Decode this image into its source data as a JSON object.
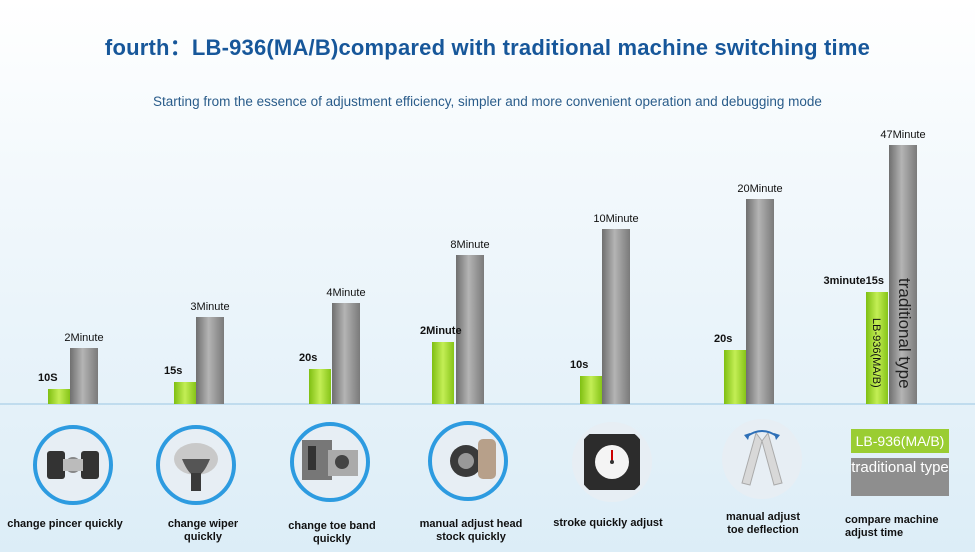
{
  "title": "fourth：LB-936(MA/B)compared with traditional  machine switching time",
  "subtitle": "Starting from the essence of adjustment efficiency, simpler and more convenient operation and debugging mode",
  "legend": {
    "lb936": "LB-936(MA/B)",
    "traditional": "traditional type"
  },
  "colors": {
    "lb936": "#9acd32",
    "traditional": "#8e8e8e",
    "title": "#17579a"
  },
  "chart_data": {
    "type": "bar",
    "categories": [
      "change pincer quickly",
      "change wiper quickly",
      "change toe band quickly",
      "manual adjust head stock quickly",
      "stroke quickly adjust",
      "manual adjust toe deflection",
      "compare machine adjust time"
    ],
    "series": [
      {
        "name": "LB-936(MA/B)",
        "labels": [
          "10S",
          "15s",
          "20s",
          "2Minute",
          "10s",
          "20s",
          "3minute15s"
        ],
        "values_seconds": [
          10,
          15,
          20,
          120,
          10,
          20,
          195
        ]
      },
      {
        "name": "traditional type",
        "labels": [
          "2Minute",
          "3Minute",
          "4Minute",
          "8Minute",
          "10Minute",
          "20Minute",
          "47Minute"
        ],
        "values_seconds": [
          120,
          180,
          240,
          480,
          600,
          1200,
          2820
        ]
      }
    ],
    "icons": [
      "pincer-icon",
      "wiper-icon",
      "toe-band-icon",
      "head-stock-icon",
      "timer-dial-icon",
      "toe-deflection-icon"
    ],
    "vertical_labels": {
      "lb936": "LB-936(MA/B)",
      "traditional": "traditional type"
    }
  }
}
